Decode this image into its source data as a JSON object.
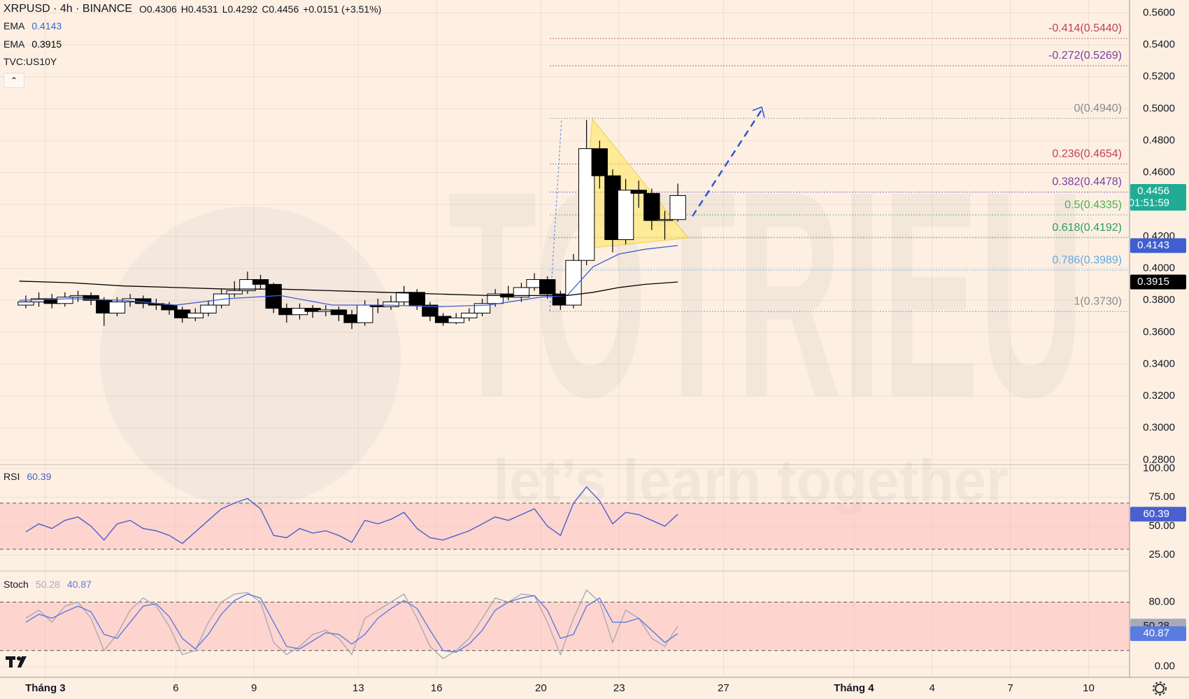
{
  "chart_data": [
    {
      "type": "candlestick",
      "title": "XRPUSD · 4h · BINANCE",
      "ohlc_header": [
        "O0.4306",
        "H0.4531",
        "L0.4292",
        "C0.4456",
        "+0.0151 (+3.51%)"
      ],
      "overlays": [
        "TVC:US10Y"
      ],
      "countdown": "01:51:59",
      "last_color": "#22ab94",
      "up_color": "#ffffff",
      "down_color": "#000000",
      "border_color": "#000000",
      "x": [
        0.25,
        0.75,
        1.25,
        1.75,
        2.25,
        2.75,
        3.25,
        3.75,
        4.25,
        4.75,
        5.25,
        5.75,
        6.25,
        6.75,
        7.25,
        7.75,
        8.25,
        8.75,
        9.25,
        9.75,
        10.25,
        10.75,
        11.25,
        11.75,
        12.25,
        12.75,
        13.25,
        13.75,
        14.25,
        14.75,
        15.25,
        15.75,
        16.25,
        16.75,
        17.25,
        17.75,
        18.25,
        18.75,
        19.25,
        19.75,
        20.25,
        20.75,
        21.25,
        21.75,
        22.25,
        22.75,
        23.25,
        23.75,
        24.25,
        24.75,
        25.25
      ],
      "open": [
        0.377,
        0.379,
        0.381,
        0.378,
        0.382,
        0.383,
        0.38,
        0.372,
        0.379,
        0.381,
        0.378,
        0.377,
        0.374,
        0.369,
        0.372,
        0.377,
        0.384,
        0.386,
        0.393,
        0.39,
        0.375,
        0.371,
        0.375,
        0.373,
        0.374,
        0.371,
        0.366,
        0.377,
        0.376,
        0.379,
        0.385,
        0.377,
        0.37,
        0.366,
        0.369,
        0.372,
        0.378,
        0.384,
        0.382,
        0.388,
        0.393,
        0.384,
        0.377,
        0.405,
        0.475,
        0.458,
        0.418,
        0.449,
        0.447,
        0.43,
        0.4306
      ],
      "high": [
        0.383,
        0.385,
        0.384,
        0.385,
        0.386,
        0.385,
        0.382,
        0.382,
        0.384,
        0.383,
        0.381,
        0.379,
        0.376,
        0.375,
        0.38,
        0.387,
        0.392,
        0.398,
        0.396,
        0.391,
        0.378,
        0.378,
        0.377,
        0.377,
        0.376,
        0.374,
        0.38,
        0.381,
        0.383,
        0.389,
        0.387,
        0.379,
        0.372,
        0.372,
        0.375,
        0.381,
        0.387,
        0.389,
        0.391,
        0.397,
        0.395,
        0.386,
        0.409,
        0.493,
        0.48,
        0.462,
        0.456,
        0.455,
        0.45,
        0.436,
        0.4531
      ],
      "low": [
        0.375,
        0.376,
        0.375,
        0.376,
        0.379,
        0.377,
        0.364,
        0.37,
        0.376,
        0.375,
        0.374,
        0.371,
        0.366,
        0.367,
        0.37,
        0.375,
        0.382,
        0.384,
        0.387,
        0.372,
        0.366,
        0.368,
        0.369,
        0.37,
        0.367,
        0.362,
        0.364,
        0.372,
        0.374,
        0.377,
        0.374,
        0.367,
        0.364,
        0.365,
        0.367,
        0.37,
        0.376,
        0.38,
        0.379,
        0.386,
        0.381,
        0.374,
        0.375,
        0.402,
        0.45,
        0.41,
        0.415,
        0.438,
        0.424,
        0.418,
        0.4292
      ],
      "close": [
        0.379,
        0.381,
        0.378,
        0.382,
        0.383,
        0.38,
        0.372,
        0.379,
        0.381,
        0.378,
        0.377,
        0.374,
        0.369,
        0.372,
        0.377,
        0.384,
        0.386,
        0.393,
        0.39,
        0.375,
        0.371,
        0.375,
        0.373,
        0.374,
        0.371,
        0.366,
        0.377,
        0.376,
        0.379,
        0.385,
        0.377,
        0.37,
        0.366,
        0.369,
        0.372,
        0.378,
        0.384,
        0.382,
        0.388,
        0.393,
        0.384,
        0.377,
        0.405,
        0.475,
        0.458,
        0.418,
        0.449,
        0.447,
        0.43,
        0.4306,
        0.4456
      ],
      "series": [
        {
          "name": "EMA",
          "color": "#3f5ecf",
          "x": [
            0,
            2,
            4,
            6,
            8,
            10,
            12,
            14,
            16,
            18,
            20,
            21,
            22,
            23,
            24,
            25.25
          ],
          "values": [
            0.38,
            0.381,
            0.38,
            0.377,
            0.381,
            0.383,
            0.377,
            0.377,
            0.376,
            0.377,
            0.382,
            0.383,
            0.401,
            0.409,
            0.412,
            0.4143
          ]
        },
        {
          "name": "EMA",
          "color": "#000000",
          "x": [
            0,
            2,
            4,
            6,
            8,
            10,
            12,
            14,
            16,
            18,
            20,
            21,
            22,
            23,
            24,
            25.25
          ],
          "values": [
            0.392,
            0.391,
            0.389,
            0.388,
            0.387,
            0.387,
            0.386,
            0.385,
            0.384,
            0.383,
            0.383,
            0.383,
            0.385,
            0.388,
            0.39,
            0.3915
          ]
        }
      ],
      "fib_levels": [
        {
          "label": "-0.414(0.5440)",
          "value": 0.544,
          "color": "#c2405a"
        },
        {
          "label": "-0.272(0.5269)",
          "value": 0.5269,
          "color": "#7a3fa6"
        },
        {
          "label": "0(0.4940)",
          "value": 0.494,
          "color": "#8a8a8a"
        },
        {
          "label": "0.236(0.4654)",
          "value": 0.4654,
          "color": "#c2405a"
        },
        {
          "label": "0.382(0.4478)",
          "value": 0.4478,
          "color": "#7a3fa6"
        },
        {
          "label": "0.5(0.4335)",
          "value": 0.4335,
          "color": "#4caf50"
        },
        {
          "label": "0.618(0.4192)",
          "value": 0.4192,
          "color": "#2e9e5e"
        },
        {
          "label": "0.786(0.3989)",
          "value": 0.3989,
          "color": "#64a8e0"
        },
        {
          "label": "1(0.3730)",
          "value": 0.373,
          "color": "#8a8a8a"
        }
      ],
      "watermark": {
        "title": "TOTRIEU",
        "subtitle": "let’s learn together"
      },
      "xlim": [
        -0.74,
        42.57
      ],
      "xticks": [
        {
          "value": 1,
          "label": "Tháng 3"
        },
        6,
        9,
        13,
        16,
        20,
        23,
        27,
        {
          "value": 32,
          "label": "Tháng 4"
        },
        {
          "value": 35,
          "label": "4"
        },
        {
          "value": 38,
          "label": "7"
        },
        {
          "value": 41,
          "label": "10"
        }
      ],
      "ylim": [
        0.2771,
        0.5681
      ],
      "yticks": [
        {
          "value": 0.28,
          "label": "0.2800"
        },
        {
          "value": 0.3,
          "label": "0.3000"
        },
        {
          "value": 0.32,
          "label": "0.3200"
        },
        {
          "value": 0.34,
          "label": "0.3400"
        },
        {
          "value": 0.36,
          "label": "0.3600"
        },
        {
          "value": 0.38,
          "label": "0.3800"
        },
        {
          "value": 0.4,
          "label": "0.4000"
        },
        {
          "value": 0.42,
          "label": "0.4200"
        },
        {
          "value": 0.44,
          "label": "0.4400"
        },
        {
          "value": 0.46,
          "label": "0.4600"
        },
        {
          "value": 0.48,
          "label": "0.4800"
        },
        {
          "value": 0.5,
          "label": "0.5000"
        },
        {
          "value": 0.52,
          "label": "0.5200"
        },
        {
          "value": 0.54,
          "label": "0.5400"
        },
        {
          "value": 0.56,
          "label": "0.5600"
        }
      ],
      "grid": true
    },
    {
      "type": "line",
      "series": [
        {
          "name": "RSI",
          "color": "#4a5fd0",
          "values": [
            45,
            52,
            48,
            55,
            58,
            50,
            38,
            52,
            55,
            48,
            46,
            42,
            35,
            45,
            55,
            65,
            70,
            74,
            65,
            42,
            40,
            48,
            44,
            46,
            42,
            36,
            55,
            52,
            56,
            62,
            48,
            40,
            38,
            42,
            46,
            52,
            58,
            55,
            60,
            65,
            50,
            42,
            70,
            84,
            72,
            52,
            62,
            60,
            55,
            50,
            60.39
          ]
        }
      ],
      "band": [
        30,
        70
      ],
      "band_color": "#ffb3b3",
      "ylim": [
        11.2,
        103.3
      ],
      "yticks": [
        {
          "value": 100,
          "label": "100.00"
        },
        {
          "value": 75,
          "label": "75.00"
        },
        {
          "value": 50,
          "label": "50.00"
        },
        {
          "value": 25,
          "label": "25.00"
        }
      ]
    },
    {
      "type": "line",
      "series": [
        {
          "name": "Stoch",
          "color": "#a9aab8",
          "values": [
            60,
            70,
            55,
            75,
            80,
            60,
            20,
            40,
            70,
            85,
            75,
            50,
            15,
            20,
            55,
            80,
            90,
            92,
            80,
            30,
            15,
            25,
            40,
            45,
            35,
            15,
            60,
            70,
            80,
            90,
            60,
            25,
            10,
            20,
            35,
            60,
            85,
            80,
            90,
            88,
            55,
            15,
            60,
            95,
            80,
            30,
            70,
            60,
            35,
            25,
            50.28
          ]
        },
        {
          "color": "#5b7be0",
          "values": [
            55,
            65,
            60,
            68,
            75,
            68,
            40,
            35,
            55,
            75,
            78,
            62,
            35,
            22,
            40,
            65,
            82,
            90,
            85,
            55,
            25,
            22,
            32,
            42,
            40,
            28,
            40,
            60,
            72,
            82,
            72,
            45,
            20,
            18,
            28,
            45,
            70,
            80,
            85,
            88,
            70,
            35,
            40,
            75,
            85,
            55,
            55,
            60,
            45,
            30,
            40.87
          ]
        }
      ],
      "band": [
        20,
        80
      ],
      "band_color": "#ffb3b3",
      "ylim": [
        -13.2,
        118.6
      ],
      "yticks": [
        {
          "value": 80,
          "label": "80.00"
        },
        {
          "value": 0,
          "label": "0.00"
        }
      ]
    }
  ]
}
